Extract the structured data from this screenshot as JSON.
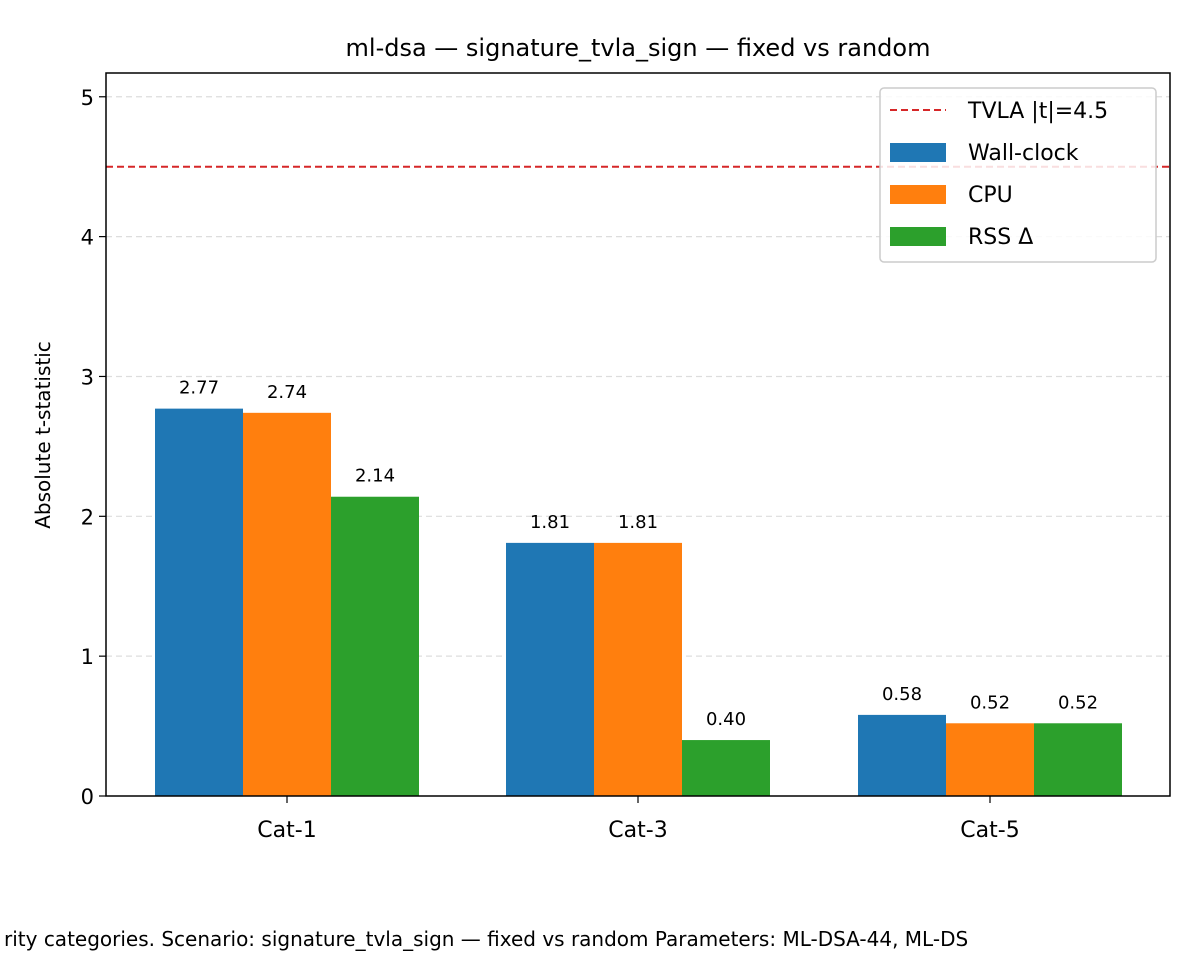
{
  "chart_data": {
    "type": "bar",
    "title": "ml-dsa — signature_tvla_sign — fixed vs random",
    "xlabel": "",
    "ylabel": "Absolute t-statistic",
    "categories": [
      "Cat-1",
      "Cat-3",
      "Cat-5"
    ],
    "ylim": [
      0,
      5.17
    ],
    "yticks": [
      0,
      1,
      2,
      3,
      4,
      5
    ],
    "grid": "y-dashed",
    "series": [
      {
        "name": "Wall-clock",
        "color": "#1f77b4",
        "values": [
          2.77,
          1.81,
          0.58
        ],
        "labels": [
          "2.77",
          "1.81",
          "0.58"
        ]
      },
      {
        "name": "CPU",
        "color": "#ff7f0e",
        "values": [
          2.74,
          1.81,
          0.52
        ],
        "labels": [
          "2.74",
          "1.81",
          "0.52"
        ]
      },
      {
        "name": "RSS Δ",
        "color": "#2ca02c",
        "values": [
          2.14,
          0.4,
          0.52
        ],
        "labels": [
          "2.14",
          "0.40",
          "0.52"
        ]
      }
    ],
    "threshold": {
      "label": "TVLA |t|=4.5",
      "value": 4.5,
      "color": "#d62728"
    },
    "legend": "top-right",
    "caption": "rity categories. Scenario: signature_tvla_sign — fixed vs random Parameters: ML-DSA-44, ML-DS"
  }
}
